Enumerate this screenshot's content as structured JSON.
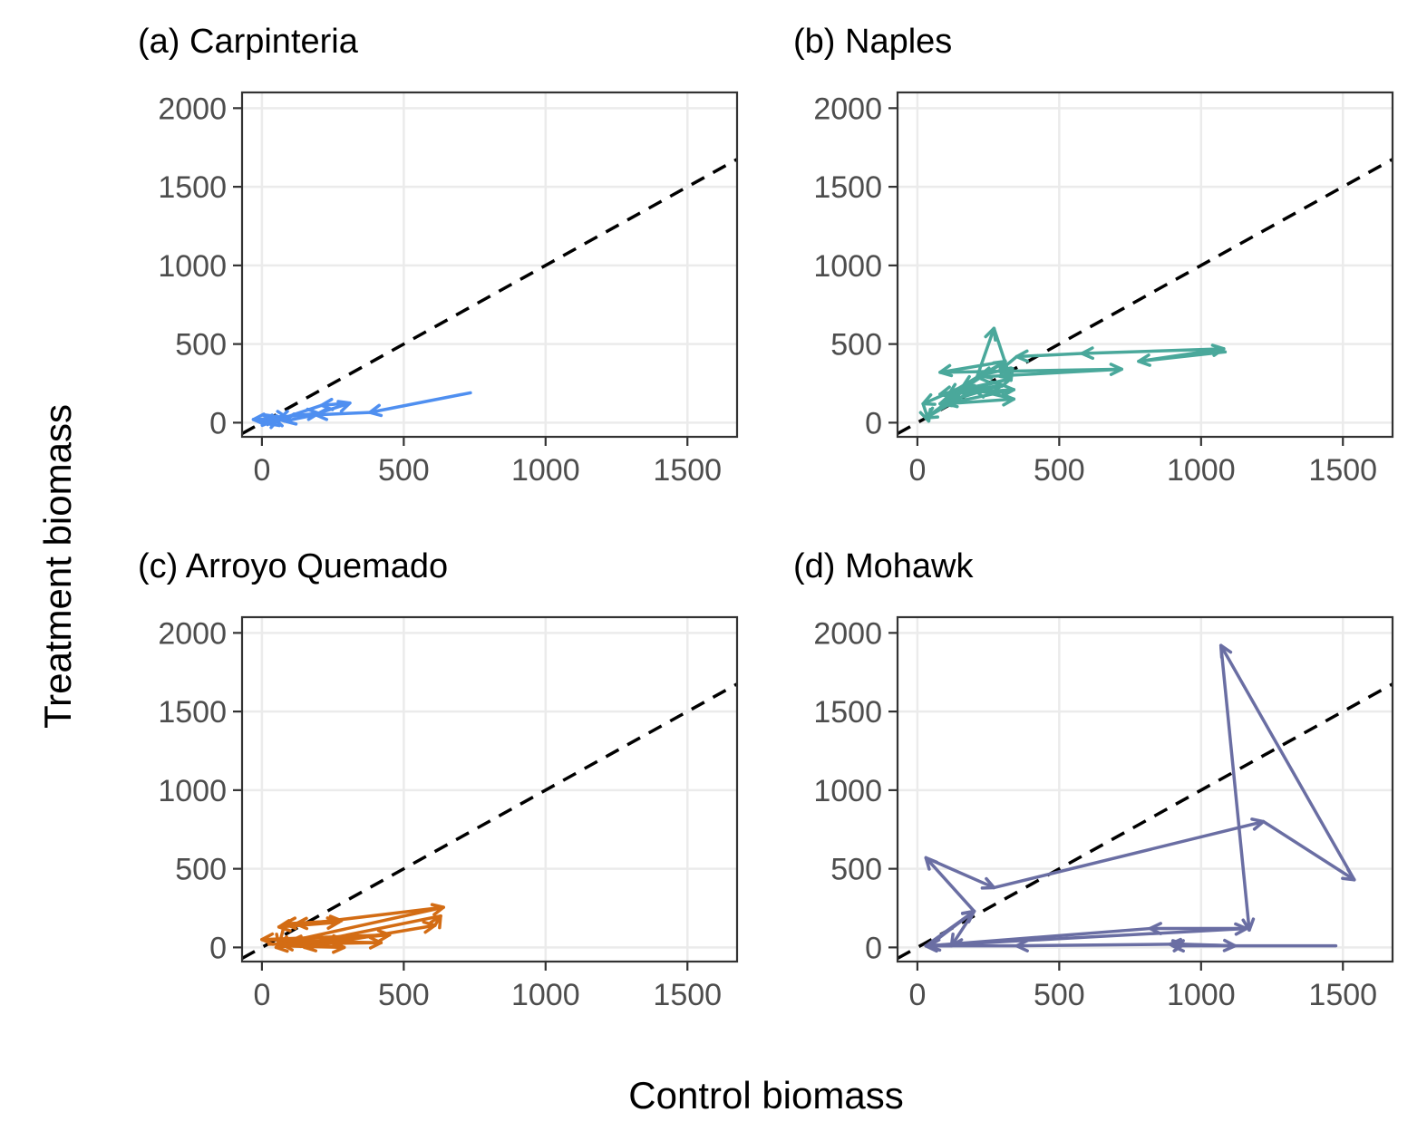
{
  "chart_data": {
    "type": "line",
    "xlabel": "Control biomass",
    "ylabel": "Treatment biomass",
    "xlim": [
      -70,
      1675
    ],
    "ylim": [
      -90,
      2100
    ],
    "xticks": [
      0,
      500,
      1000,
      1500
    ],
    "yticks": [
      0,
      500,
      1000,
      1500,
      2000
    ],
    "grid": true,
    "reference_line": {
      "style": "dashed",
      "color": "#000000",
      "slope": 1,
      "intercept": 0
    },
    "panels": [
      {
        "title": "(a) Carpinteria",
        "color": "#4f8ff0",
        "points": [
          [
            735,
            190
          ],
          [
            380,
            65
          ],
          [
            190,
            50
          ],
          [
            80,
            10
          ],
          [
            40,
            30
          ],
          [
            200,
            60
          ],
          [
            310,
            125
          ],
          [
            210,
            110
          ],
          [
            60,
            20
          ],
          [
            0,
            10
          ],
          [
            50,
            40
          ],
          [
            90,
            30
          ],
          [
            20,
            -5
          ],
          [
            60,
            25
          ],
          [
            -30,
            20
          ],
          [
            40,
            10
          ]
        ]
      },
      {
        "title": "(b) Naples",
        "color": "#4aa89b",
        "points": [
          [
            1085,
            450
          ],
          [
            780,
            390
          ],
          [
            1080,
            470
          ],
          [
            580,
            440
          ],
          [
            350,
            420
          ],
          [
            290,
            330
          ],
          [
            220,
            300
          ],
          [
            110,
            180
          ],
          [
            330,
            280
          ],
          [
            80,
            180
          ],
          [
            340,
            210
          ],
          [
            100,
            120
          ],
          [
            340,
            150
          ],
          [
            200,
            210
          ],
          [
            30,
            30
          ],
          [
            150,
            190
          ],
          [
            300,
            240
          ],
          [
            80,
            120
          ],
          [
            310,
            390
          ],
          [
            80,
            320
          ],
          [
            720,
            340
          ],
          [
            210,
            290
          ],
          [
            270,
            600
          ],
          [
            330,
            270
          ],
          [
            290,
            370
          ],
          [
            160,
            230
          ],
          [
            20,
            120
          ],
          [
            40,
            10
          ]
        ]
      },
      {
        "title": "(c) Arroyo Quemado",
        "color": "#d36c14",
        "points": [
          [
            25,
            20
          ],
          [
            420,
            30
          ],
          [
            100,
            40
          ],
          [
            640,
            255
          ],
          [
            60,
            130
          ],
          [
            270,
            160
          ],
          [
            120,
            150
          ],
          [
            280,
            170
          ],
          [
            80,
            150
          ],
          [
            60,
            10
          ],
          [
            290,
            0
          ],
          [
            70,
            20
          ],
          [
            450,
            80
          ],
          [
            0,
            50
          ],
          [
            290,
            40
          ],
          [
            150,
            0
          ],
          [
            610,
            140
          ],
          [
            630,
            200
          ],
          [
            140,
            20
          ],
          [
            50,
            0
          ]
        ]
      },
      {
        "title": "(d) Mohawk",
        "color": "#6a6ea3",
        "points": [
          [
            1475,
            10
          ],
          [
            900,
            10
          ],
          [
            940,
            20
          ],
          [
            1120,
            10
          ],
          [
            890,
            20
          ],
          [
            350,
            10
          ],
          [
            30,
            10
          ],
          [
            200,
            230
          ],
          [
            120,
            10
          ],
          [
            30,
            10
          ],
          [
            1160,
            120
          ],
          [
            820,
            120
          ],
          [
            40,
            10
          ],
          [
            200,
            230
          ],
          [
            30,
            570
          ],
          [
            270,
            380
          ],
          [
            1220,
            800
          ],
          [
            1540,
            430
          ],
          [
            1070,
            1920
          ],
          [
            1170,
            110
          ]
        ]
      }
    ]
  }
}
